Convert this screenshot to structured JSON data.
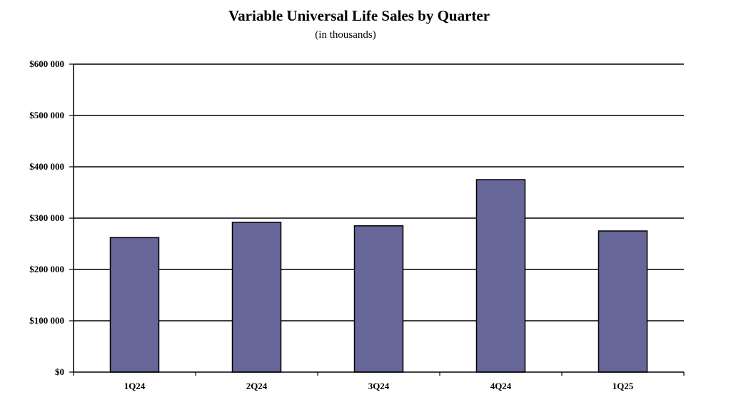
{
  "chart_data": {
    "type": "bar",
    "title": "Variable Universal Life Sales by Quarter",
    "subtitle": "(in thousands)",
    "xlabel": "",
    "ylabel": "",
    "categories": [
      "1Q24",
      "2Q24",
      "3Q24",
      "4Q24",
      "1Q25"
    ],
    "series": [
      {
        "values": [
          262000,
          292000,
          285000,
          375000,
          275000
        ]
      }
    ],
    "ylim": [
      0,
      600000
    ],
    "yticks": [
      0,
      100000,
      200000,
      300000,
      400000,
      500000,
      600000
    ],
    "ytick_labels": [
      "$0",
      "$100 000",
      "$200 000",
      "$300 000",
      "$400 000",
      "$500 000",
      "$600 000"
    ],
    "grid": true,
    "legend": "none",
    "colors": {
      "bar_fill": "#666699",
      "bar_stroke": "#000000",
      "gridline": "#000000",
      "axis": "#000000"
    }
  }
}
